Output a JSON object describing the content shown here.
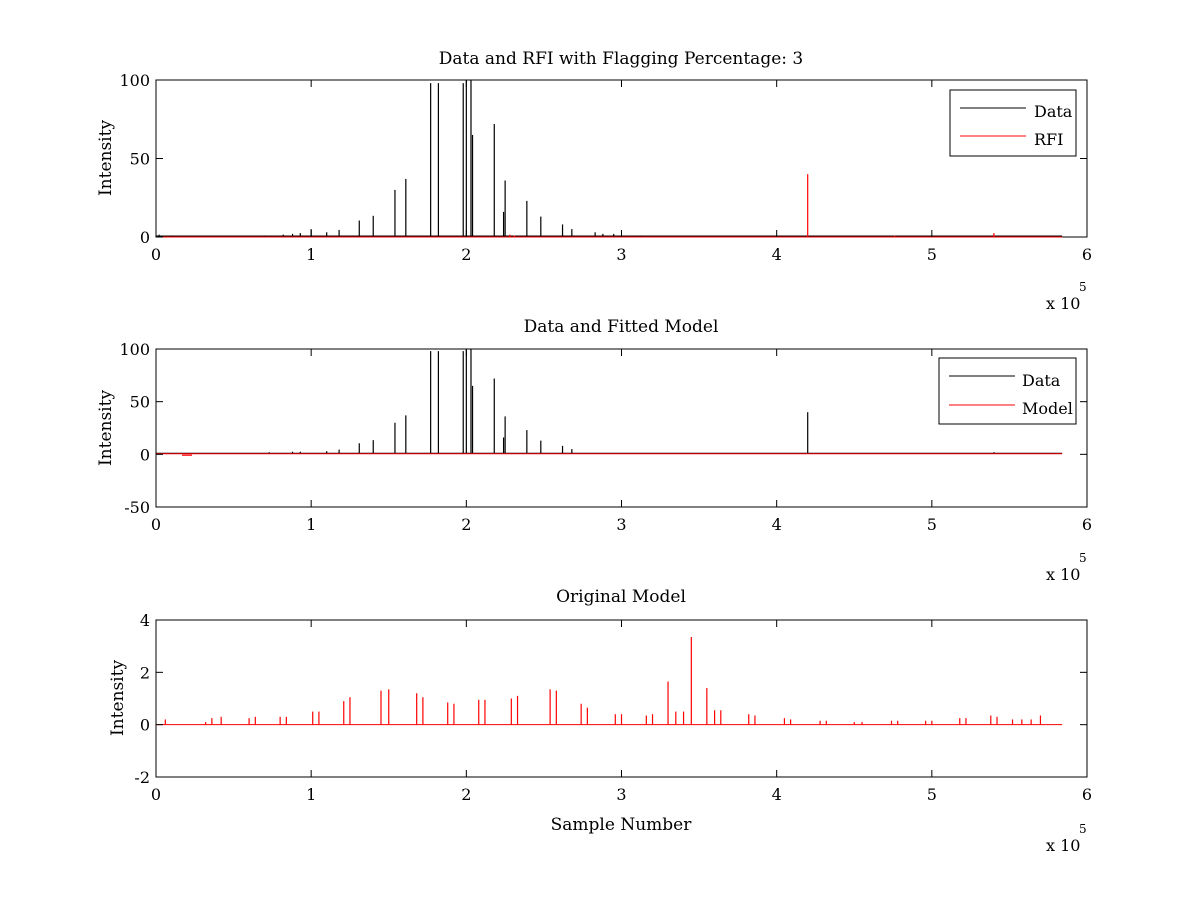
{
  "colors": {
    "data": "#000000",
    "rfi": "#ff0000",
    "model": "#ff0000",
    "axes": "#000000",
    "background": "#ffffff"
  },
  "chart_data": [
    {
      "type": "line",
      "title": "Data and RFI with Flagging Percentage: 3",
      "xlabel": "",
      "ylabel": "Intensity",
      "xlim": [
        0,
        600000
      ],
      "ylim": [
        0,
        100
      ],
      "xticks": [
        "0",
        "1",
        "2",
        "3",
        "4",
        "5",
        "6"
      ],
      "yticks": [
        "0",
        "50",
        "100"
      ],
      "x_exponent_label": "x 10",
      "x_exponent": "5",
      "grid": false,
      "legend_position": "top-right",
      "series": [
        {
          "name": "Data",
          "color": "#000000",
          "baseline": 0.6,
          "spikes": [
            [
              2000,
              1.5
            ],
            [
              10000,
              1
            ],
            [
              30000,
              0.8
            ],
            [
              52000,
              0.8
            ],
            [
              70000,
              1
            ],
            [
              82000,
              1.5
            ],
            [
              88000,
              2
            ],
            [
              93000,
              2.5
            ],
            [
              100000,
              5
            ],
            [
              110000,
              3
            ],
            [
              118000,
              4.5
            ],
            [
              131000,
              10.5
            ],
            [
              140000,
              13.5
            ],
            [
              154000,
              30
            ],
            [
              161000,
              37
            ],
            [
              177000,
              98
            ],
            [
              182000,
              98
            ],
            [
              198000,
              98
            ],
            [
              200000,
              100
            ],
            [
              203000,
              100
            ],
            [
              204000,
              65
            ],
            [
              218000,
              72
            ],
            [
              224000,
              16
            ],
            [
              225000,
              36
            ],
            [
              239000,
              23
            ],
            [
              248000,
              13
            ],
            [
              262000,
              8
            ],
            [
              268000,
              5
            ],
            [
              283000,
              3
            ],
            [
              288000,
              2
            ],
            [
              295000,
              2
            ],
            [
              312000,
              1
            ],
            [
              350000,
              0.8
            ],
            [
              380000,
              0.8
            ],
            [
              450000,
              0.6
            ],
            [
              540000,
              0.8
            ]
          ]
        },
        {
          "name": "RFI",
          "color": "#ff0000",
          "baseline": 0,
          "spikes": [
            [
              228000,
              1.5
            ],
            [
              231000,
              1
            ],
            [
              420000,
              40
            ],
            [
              476000,
              0.8
            ],
            [
              540000,
              2.5
            ]
          ]
        }
      ]
    },
    {
      "type": "line",
      "title": "Data and Fitted Model",
      "xlabel": "",
      "ylabel": "Intensity",
      "xlim": [
        0,
        600000
      ],
      "ylim": [
        -50,
        100
      ],
      "xticks": [
        "0",
        "1",
        "2",
        "3",
        "4",
        "5",
        "6"
      ],
      "yticks": [
        "-50",
        "0",
        "50",
        "100"
      ],
      "x_exponent_label": "x 10",
      "x_exponent": "5",
      "grid": false,
      "legend_position": "top-right",
      "series": [
        {
          "name": "Data",
          "color": "#000000",
          "baseline": 1,
          "spikes": [
            [
              73000,
              2
            ],
            [
              88000,
              2.5
            ],
            [
              93000,
              2.5
            ],
            [
              110000,
              3
            ],
            [
              118000,
              4.5
            ],
            [
              131000,
              10.5
            ],
            [
              140000,
              13.5
            ],
            [
              154000,
              30
            ],
            [
              161000,
              37
            ],
            [
              177000,
              98
            ],
            [
              182000,
              98
            ],
            [
              198000,
              98
            ],
            [
              200000,
              100
            ],
            [
              203000,
              100
            ],
            [
              204000,
              65
            ],
            [
              218000,
              72
            ],
            [
              224000,
              16
            ],
            [
              225000,
              36
            ],
            [
              239000,
              23
            ],
            [
              248000,
              13
            ],
            [
              262000,
              8
            ],
            [
              268000,
              5
            ],
            [
              420000,
              40
            ],
            [
              540000,
              2
            ]
          ]
        },
        {
          "name": "Model",
          "color": "#ff0000",
          "baseline": 0.5,
          "dips": [
            [
              20000,
              -0.8
            ]
          ]
        }
      ]
    },
    {
      "type": "line",
      "title": "Original Model",
      "xlabel": "Sample Number",
      "ylabel": "Intensity",
      "xlim": [
        0,
        600000
      ],
      "ylim": [
        -2,
        4
      ],
      "xticks": [
        "0",
        "1",
        "2",
        "3",
        "4",
        "5",
        "6"
      ],
      "yticks": [
        "-2",
        "0",
        "2",
        "4"
      ],
      "x_exponent_label": "x 10",
      "x_exponent": "5",
      "grid": false,
      "series": [
        {
          "name": "",
          "color": "#ff0000",
          "baseline": 0,
          "spikes": [
            [
              6000,
              0.2
            ],
            [
              32000,
              0.1
            ],
            [
              36000,
              0.25
            ],
            [
              42000,
              0.3
            ],
            [
              60000,
              0.25
            ],
            [
              64000,
              0.3
            ],
            [
              80000,
              0.3
            ],
            [
              84000,
              0.3
            ],
            [
              101000,
              0.5
            ],
            [
              105000,
              0.5
            ],
            [
              121000,
              0.9
            ],
            [
              125000,
              1.05
            ],
            [
              145000,
              1.3
            ],
            [
              150000,
              1.35
            ],
            [
              168000,
              1.2
            ],
            [
              172000,
              1.05
            ],
            [
              188000,
              0.85
            ],
            [
              192000,
              0.8
            ],
            [
              208000,
              0.95
            ],
            [
              212000,
              0.95
            ],
            [
              229000,
              1.0
            ],
            [
              233000,
              1.1
            ],
            [
              254000,
              1.35
            ],
            [
              258000,
              1.3
            ],
            [
              274000,
              0.8
            ],
            [
              278000,
              0.65
            ],
            [
              296000,
              0.4
            ],
            [
              300000,
              0.4
            ],
            [
              316000,
              0.35
            ],
            [
              320000,
              0.4
            ],
            [
              330000,
              1.65
            ],
            [
              335000,
              0.5
            ],
            [
              340000,
              0.5
            ],
            [
              345000,
              3.35
            ],
            [
              355000,
              1.4
            ],
            [
              360000,
              0.55
            ],
            [
              364000,
              0.55
            ],
            [
              382000,
              0.4
            ],
            [
              386000,
              0.35
            ],
            [
              405000,
              0.25
            ],
            [
              409000,
              0.2
            ],
            [
              428000,
              0.15
            ],
            [
              432000,
              0.15
            ],
            [
              450000,
              0.1
            ],
            [
              455000,
              0.1
            ],
            [
              474000,
              0.15
            ],
            [
              478000,
              0.15
            ],
            [
              496000,
              0.15
            ],
            [
              500000,
              0.15
            ],
            [
              518000,
              0.25
            ],
            [
              522000,
              0.25
            ],
            [
              538000,
              0.35
            ],
            [
              542000,
              0.3
            ],
            [
              552000,
              0.2
            ],
            [
              558000,
              0.2
            ],
            [
              564000,
              0.2
            ],
            [
              570000,
              0.35
            ]
          ]
        }
      ]
    }
  ]
}
